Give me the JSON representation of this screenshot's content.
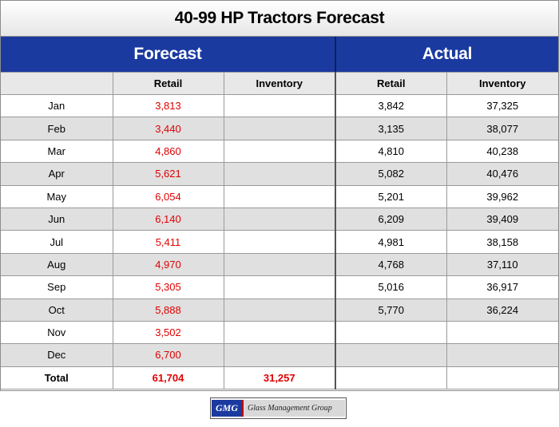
{
  "title": "40-99 HP Tractors Forecast",
  "headers": {
    "forecast": "Forecast",
    "actual": "Actual"
  },
  "subheaders": {
    "retail_f": "Retail",
    "inventory_f": "Inventory",
    "retail_a": "Retail",
    "inventory_a": "Inventory"
  },
  "rows": [
    {
      "month": "Jan",
      "f_retail": "3,813",
      "f_inventory": "",
      "a_retail": "3,842",
      "a_inventory": "37,325"
    },
    {
      "month": "Feb",
      "f_retail": "3,440",
      "f_inventory": "",
      "a_retail": "3,135",
      "a_inventory": "38,077"
    },
    {
      "month": "Mar",
      "f_retail": "4,860",
      "f_inventory": "",
      "a_retail": "4,810",
      "a_inventory": "40,238"
    },
    {
      "month": "Apr",
      "f_retail": "5,621",
      "f_inventory": "",
      "a_retail": "5,082",
      "a_inventory": "40,476"
    },
    {
      "month": "May",
      "f_retail": "6,054",
      "f_inventory": "",
      "a_retail": "5,201",
      "a_inventory": "39,962"
    },
    {
      "month": "Jun",
      "f_retail": "6,140",
      "f_inventory": "",
      "a_retail": "6,209",
      "a_inventory": "39,409"
    },
    {
      "month": "Jul",
      "f_retail": "5,411",
      "f_inventory": "",
      "a_retail": "4,981",
      "a_inventory": "38,158"
    },
    {
      "month": "Aug",
      "f_retail": "4,970",
      "f_inventory": "",
      "a_retail": "4,768",
      "a_inventory": "37,110"
    },
    {
      "month": "Sep",
      "f_retail": "5,305",
      "f_inventory": "",
      "a_retail": "5,016",
      "a_inventory": "36,917"
    },
    {
      "month": "Oct",
      "f_retail": "5,888",
      "f_inventory": "",
      "a_retail": "5,770",
      "a_inventory": "36,224"
    },
    {
      "month": "Nov",
      "f_retail": "3,502",
      "f_inventory": "",
      "a_retail": "",
      "a_inventory": ""
    },
    {
      "month": "Dec",
      "f_retail": "6,700",
      "f_inventory": "",
      "a_retail": "",
      "a_inventory": ""
    }
  ],
  "total": {
    "label": "Total",
    "f_retail": "61,704",
    "f_inventory": "31,257",
    "a_retail": "",
    "a_inventory": ""
  },
  "logo": {
    "badge": "GMG",
    "name": "Glass Management Group"
  },
  "colors": {
    "header_blue": "#1b3aa0",
    "forecast_red": "#e00000",
    "row_shade": "#e0e0e0"
  }
}
